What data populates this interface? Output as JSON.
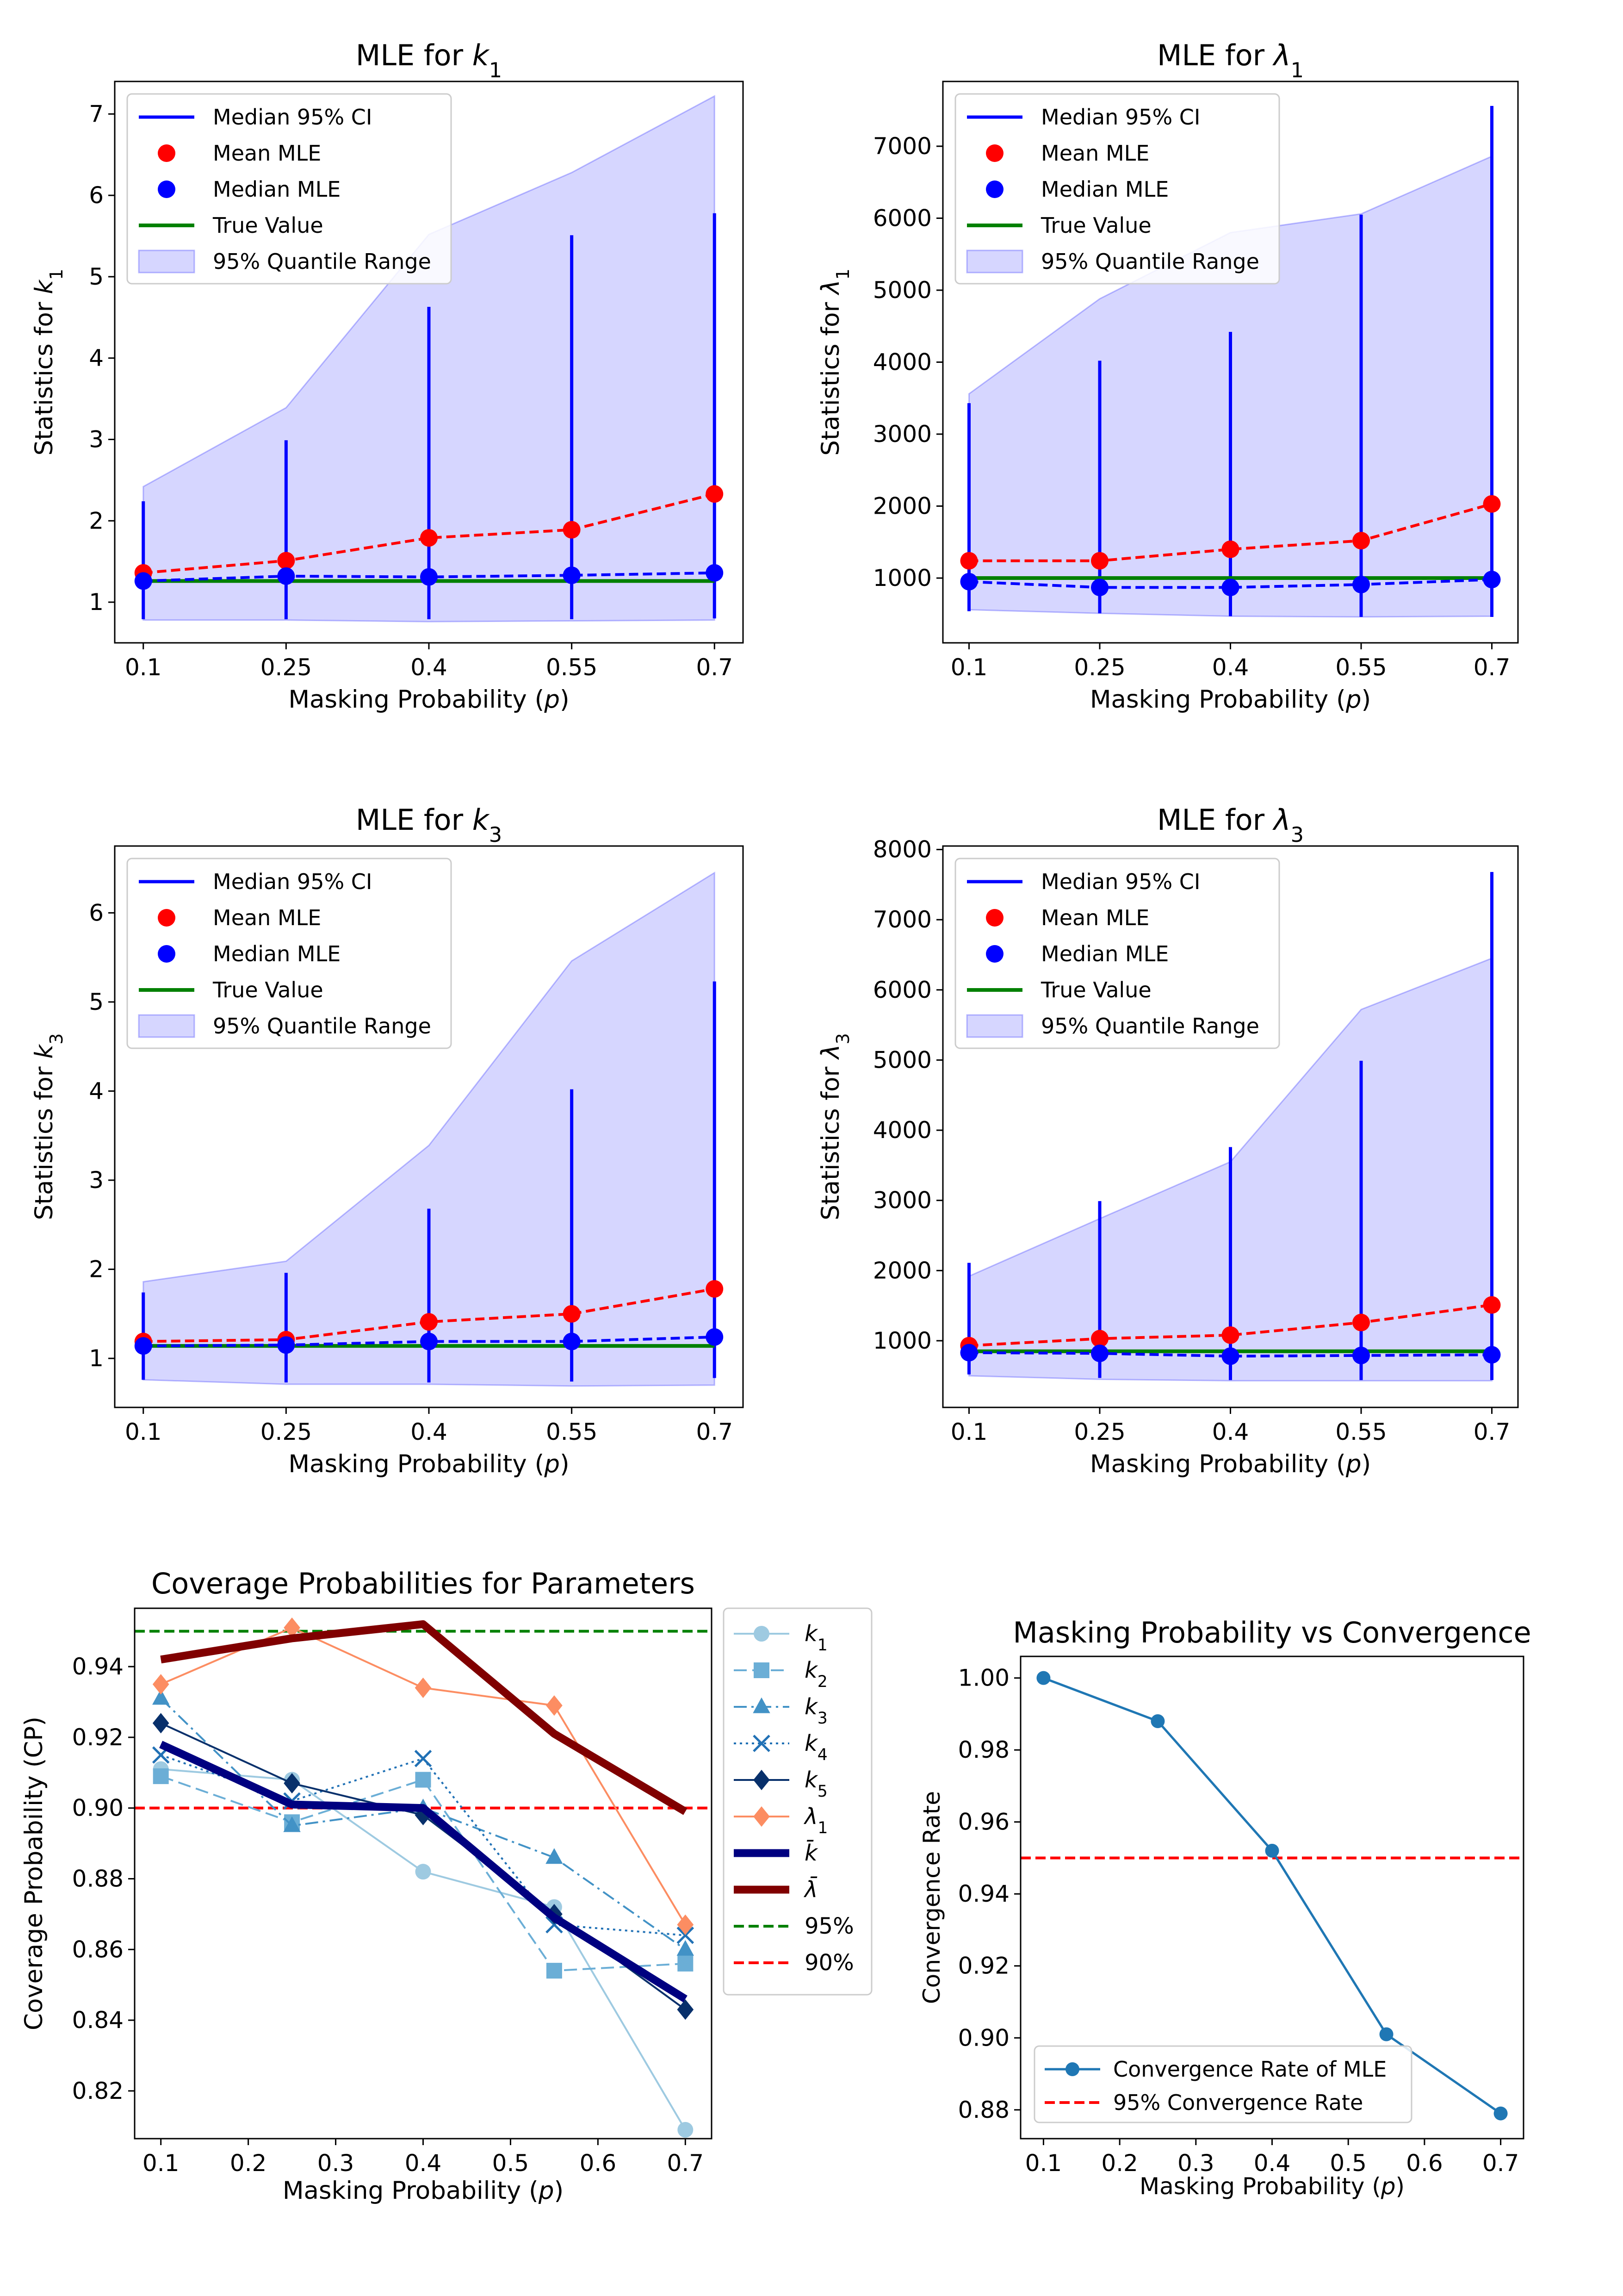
{
  "figure": {
    "background": "#ffffff"
  },
  "colors": {
    "ci_line": "#0000ff",
    "mean_mle": "#ff0000",
    "median_mle": "#0000ff",
    "true_value": "#008000",
    "quantile_fill": "#0000ff",
    "ref_95": "#008000",
    "ref_90": "#ff0000",
    "conv_line": "#1f77b4",
    "conv_ref": "#ff0000"
  },
  "chart_data": [
    {
      "id": "k1",
      "type": "line",
      "title": "MLE for k₁",
      "title_plain": "MLE for ",
      "title_sym": "k",
      "title_sub": "1",
      "xlabel": "Masking Probability (p)",
      "ylabel": "Statistics for k₁",
      "ylabel_plain": "Statistics for ",
      "ylabel_sym": "k",
      "ylabel_sub": "1",
      "x": [
        0.1,
        0.25,
        0.4,
        0.55,
        0.7
      ],
      "x_tick_labels": [
        "0.1",
        "0.25",
        "0.4",
        "0.55",
        "0.7"
      ],
      "xlim": [
        0.07,
        0.73
      ],
      "ylim": [
        0.5,
        7.4
      ],
      "y_ticks": [
        1,
        2,
        3,
        4,
        5,
        6,
        7
      ],
      "y_tick_labels": [
        "1",
        "2",
        "3",
        "4",
        "5",
        "6",
        "7"
      ],
      "quantile_low": [
        0.78,
        0.78,
        0.76,
        0.77,
        0.78
      ],
      "quantile_high": [
        2.42,
        3.39,
        5.52,
        6.28,
        7.22
      ],
      "ci_low": [
        0.79,
        0.79,
        0.79,
        0.79,
        0.8
      ],
      "ci_high": [
        2.24,
        2.99,
        4.63,
        5.51,
        5.78
      ],
      "mean_mle": [
        1.36,
        1.51,
        1.79,
        1.89,
        2.33
      ],
      "median_mle": [
        1.26,
        1.32,
        1.31,
        1.33,
        1.36
      ],
      "true_value": 1.26,
      "legend": [
        "Median 95% CI",
        "Mean MLE",
        "Median MLE",
        "True Value",
        "95% Quantile Range"
      ],
      "legend_loc": "upper left",
      "grid": false
    },
    {
      "id": "lambda1",
      "type": "line",
      "title": "MLE for λ₁",
      "title_plain": "MLE for ",
      "title_sym": "λ",
      "title_sub": "1",
      "xlabel": "Masking Probability (p)",
      "ylabel": "Statistics for λ₁",
      "ylabel_plain": "Statistics for ",
      "ylabel_sym": "λ",
      "ylabel_sub": "1",
      "x": [
        0.1,
        0.25,
        0.4,
        0.55,
        0.7
      ],
      "x_tick_labels": [
        "0.1",
        "0.25",
        "0.4",
        "0.55",
        "0.7"
      ],
      "xlim": [
        0.07,
        0.73
      ],
      "ylim": [
        100,
        7900
      ],
      "y_ticks": [
        1000,
        2000,
        3000,
        4000,
        5000,
        6000,
        7000
      ],
      "y_tick_labels": [
        "1000",
        "2000",
        "3000",
        "4000",
        "5000",
        "6000",
        "7000"
      ],
      "quantile_low": [
        560,
        510,
        470,
        460,
        470
      ],
      "quantile_high": [
        3560,
        4880,
        5800,
        6060,
        6860
      ],
      "ci_low": [
        540,
        510,
        470,
        460,
        460
      ],
      "ci_high": [
        3430,
        4020,
        4420,
        6050,
        7560
      ],
      "mean_mle": [
        1240,
        1240,
        1400,
        1520,
        2030
      ],
      "median_mle": [
        950,
        870,
        870,
        910,
        980
      ],
      "true_value": 1000,
      "legend": [
        "Median 95% CI",
        "Mean MLE",
        "Median MLE",
        "True Value",
        "95% Quantile Range"
      ],
      "legend_loc": "upper left",
      "grid": false
    },
    {
      "id": "k3",
      "type": "line",
      "title": "MLE for k₃",
      "title_plain": "MLE for ",
      "title_sym": "k",
      "title_sub": "3",
      "xlabel": "Masking Probability (p)",
      "ylabel": "Statistics for k₃",
      "ylabel_plain": "Statistics for ",
      "ylabel_sym": "k",
      "ylabel_sub": "3",
      "x": [
        0.1,
        0.25,
        0.4,
        0.55,
        0.7
      ],
      "x_tick_labels": [
        "0.1",
        "0.25",
        "0.4",
        "0.55",
        "0.7"
      ],
      "xlim": [
        0.07,
        0.73
      ],
      "ylim": [
        0.45,
        6.75
      ],
      "y_ticks": [
        1,
        2,
        3,
        4,
        5,
        6
      ],
      "y_tick_labels": [
        "1",
        "2",
        "3",
        "4",
        "5",
        "6"
      ],
      "quantile_low": [
        0.76,
        0.71,
        0.71,
        0.69,
        0.7
      ],
      "quantile_high": [
        1.86,
        2.09,
        3.39,
        5.46,
        6.45
      ],
      "ci_low": [
        0.76,
        0.73,
        0.73,
        0.74,
        0.78
      ],
      "ci_high": [
        1.74,
        1.96,
        2.68,
        4.02,
        5.23
      ],
      "mean_mle": [
        1.19,
        1.21,
        1.41,
        1.5,
        1.78
      ],
      "median_mle": [
        1.14,
        1.15,
        1.19,
        1.19,
        1.24
      ],
      "true_value": 1.14,
      "legend": [
        "Median 95% CI",
        "Mean MLE",
        "Median MLE",
        "True Value",
        "95% Quantile Range"
      ],
      "legend_loc": "upper left",
      "grid": false
    },
    {
      "id": "lambda3",
      "type": "line",
      "title": "MLE for λ₃",
      "title_plain": "MLE for ",
      "title_sym": "λ",
      "title_sub": "3",
      "xlabel": "Masking Probability (p)",
      "ylabel": "Statistics for λ₃",
      "ylabel_plain": "Statistics for ",
      "ylabel_sym": "λ",
      "ylabel_sub": "3",
      "x": [
        0.1,
        0.25,
        0.4,
        0.55,
        0.7
      ],
      "x_tick_labels": [
        "0.1",
        "0.25",
        "0.4",
        "0.55",
        "0.7"
      ],
      "xlim": [
        0.07,
        0.73
      ],
      "ylim": [
        50,
        8050
      ],
      "y_ticks": [
        1000,
        2000,
        3000,
        4000,
        5000,
        6000,
        7000,
        8000
      ],
      "y_tick_labels": [
        "1000",
        "2000",
        "3000",
        "4000",
        "5000",
        "6000",
        "7000",
        "8000"
      ],
      "quantile_low": [
        500,
        450,
        430,
        430,
        430
      ],
      "quantile_high": [
        1920,
        2740,
        3550,
        5720,
        6450
      ],
      "ci_low": [
        520,
        470,
        440,
        440,
        440
      ],
      "ci_high": [
        2110,
        2990,
        3760,
        4990,
        7680
      ],
      "mean_mle": [
        930,
        1030,
        1080,
        1260,
        1510
      ],
      "median_mle": [
        830,
        820,
        780,
        790,
        800
      ],
      "true_value": 850,
      "legend": [
        "Median 95% CI",
        "Mean MLE",
        "Median MLE",
        "True Value",
        "95% Quantile Range"
      ],
      "legend_loc": "upper left",
      "grid": false
    },
    {
      "id": "coverage",
      "type": "line",
      "title": "Coverage Probabilities for Parameters",
      "xlabel": "Masking Probability (p)",
      "ylabel": "Coverage Probability (CP)",
      "x": [
        0.1,
        0.25,
        0.4,
        0.55,
        0.7
      ],
      "xlim": [
        0.07,
        0.73
      ],
      "x_ticks": [
        0.1,
        0.2,
        0.3,
        0.4,
        0.5,
        0.6,
        0.7
      ],
      "x_tick_labels": [
        "0.1",
        "0.2",
        "0.3",
        "0.4",
        "0.5",
        "0.6",
        "0.7"
      ],
      "ylim": [
        0.8065,
        0.9565
      ],
      "y_ticks": [
        0.82,
        0.84,
        0.86,
        0.88,
        0.9,
        0.92,
        0.94
      ],
      "y_tick_labels": [
        "0.82",
        "0.84",
        "0.86",
        "0.88",
        "0.90",
        "0.92",
        "0.94"
      ],
      "series": [
        {
          "name": "k₁",
          "sym": "k",
          "sub": "1",
          "values": [
            0.911,
            0.908,
            0.882,
            0.872,
            0.809
          ],
          "color": "#9ecae1",
          "dash": "none",
          "marker": "circle",
          "width": 4
        },
        {
          "name": "k₂",
          "sym": "k",
          "sub": "2",
          "values": [
            0.909,
            0.896,
            0.908,
            0.854,
            0.856
          ],
          "color": "#6baed6",
          "dash": "28 12",
          "marker": "square",
          "width": 4
        },
        {
          "name": "k₃",
          "sym": "k",
          "sub": "3",
          "values": [
            0.931,
            0.895,
            0.9,
            0.886,
            0.86
          ],
          "color": "#4292c6",
          "dash": "28 10 5 10",
          "marker": "triangle",
          "width": 4
        },
        {
          "name": "k₄",
          "sym": "k",
          "sub": "4",
          "values": [
            0.915,
            0.902,
            0.914,
            0.867,
            0.864
          ],
          "color": "#2171b5",
          "dash": "5 8",
          "marker": "x",
          "width": 4
        },
        {
          "name": "k₅",
          "sym": "k",
          "sub": "5",
          "values": [
            0.924,
            0.907,
            0.898,
            0.87,
            0.843
          ],
          "color": "#08306b",
          "dash": "none",
          "marker": "diamond",
          "width": 4
        },
        {
          "name": "λ₁",
          "sym": "λ",
          "sub": "1",
          "values": [
            0.935,
            0.951,
            0.934,
            0.929,
            0.867
          ],
          "color": "#fc8d62",
          "dash": "none",
          "marker": "diamond",
          "width": 4
        },
        {
          "name": "k̄",
          "sym": "k̄",
          "sub": "",
          "values": [
            0.918,
            0.901,
            0.9,
            0.869,
            0.846
          ],
          "color": "#000080",
          "dash": "none",
          "marker": "none",
          "width": 17
        },
        {
          "name": "λ̄",
          "sym": "λ̄",
          "sub": "",
          "values": [
            0.942,
            0.948,
            0.952,
            0.921,
            0.899
          ],
          "color": "#800000",
          "dash": "none",
          "marker": "none",
          "width": 17
        }
      ],
      "reference_lines": [
        {
          "name": "95%",
          "value": 0.95,
          "color": "#008000"
        },
        {
          "name": "90%",
          "value": 0.9,
          "color": "#ff0000"
        }
      ],
      "legend_loc": "outside right",
      "grid": false
    },
    {
      "id": "convergence",
      "type": "line",
      "title": "Masking Probability vs Convergence",
      "xlabel": "Masking Probability (p)",
      "ylabel": "Convergence Rate",
      "x": [
        0.1,
        0.25,
        0.4,
        0.55,
        0.7
      ],
      "xlim": [
        0.07,
        0.73
      ],
      "x_ticks": [
        0.1,
        0.2,
        0.3,
        0.4,
        0.5,
        0.6,
        0.7
      ],
      "x_tick_labels": [
        "0.1",
        "0.2",
        "0.3",
        "0.4",
        "0.5",
        "0.6",
        "0.7"
      ],
      "ylim": [
        0.872,
        1.006
      ],
      "y_ticks": [
        0.88,
        0.9,
        0.92,
        0.94,
        0.96,
        0.98,
        1.0
      ],
      "y_tick_labels": [
        "0.88",
        "0.90",
        "0.92",
        "0.94",
        "0.96",
        "0.98",
        "1.00"
      ],
      "series": [
        {
          "name": "Convergence Rate of MLE",
          "values": [
            1.0,
            0.988,
            0.952,
            0.901,
            0.879
          ]
        }
      ],
      "reference_line": {
        "name": "95% Convergence Rate",
        "value": 0.95
      },
      "legend_loc": "lower left",
      "grid": false
    }
  ]
}
